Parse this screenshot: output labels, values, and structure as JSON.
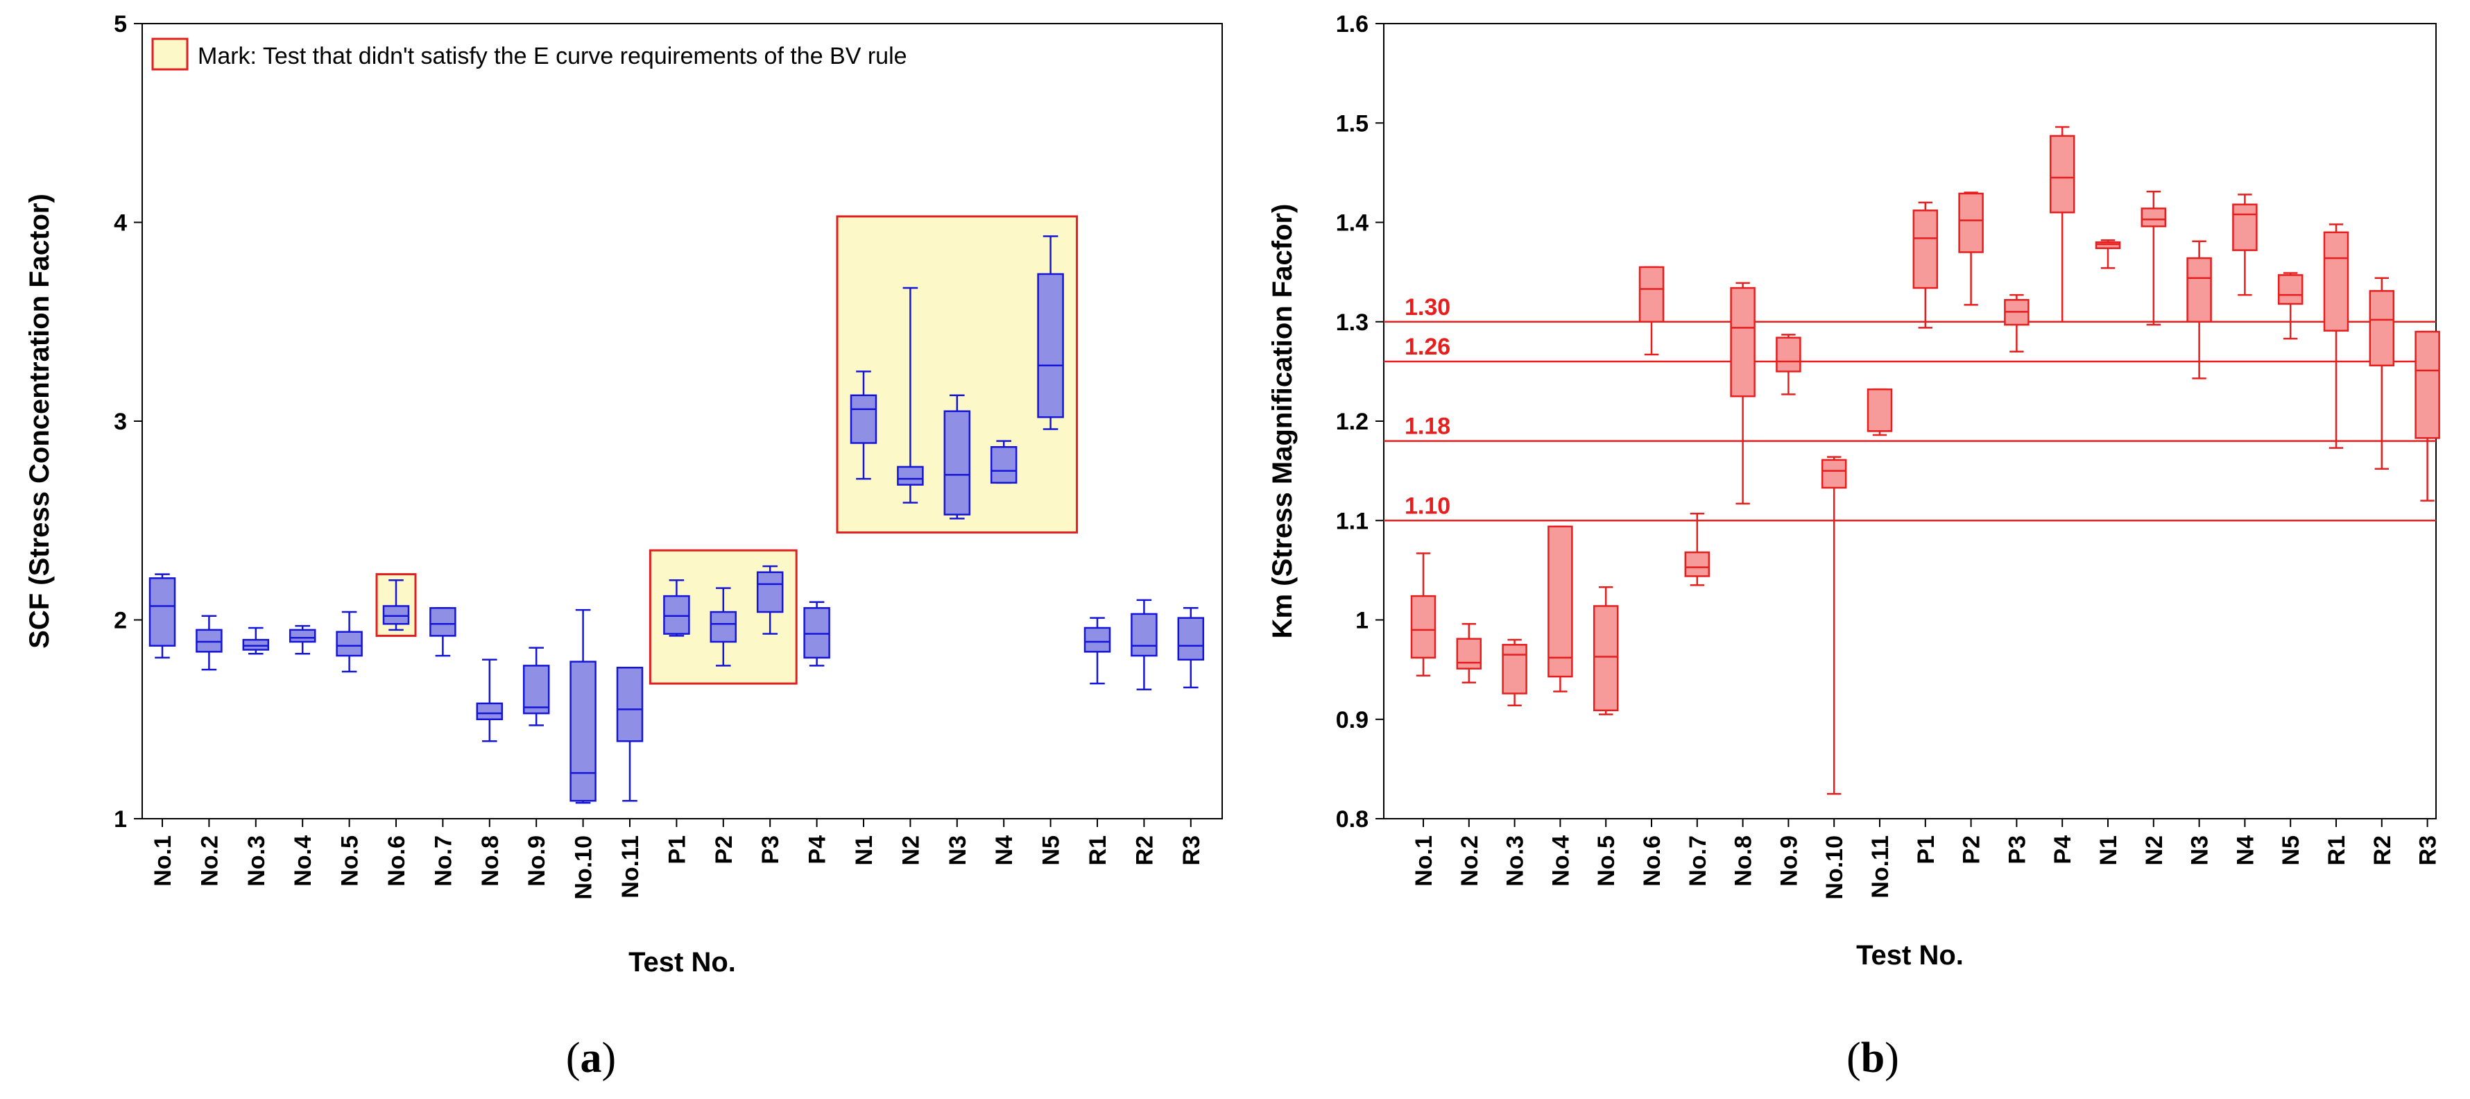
{
  "colors": {
    "a_fill": "#8f8fe6",
    "a_stroke": "#1515d8",
    "b_fill": "#f79a9a",
    "b_stroke": "#e61e1e",
    "highlight_fill": "#fdf8c7",
    "highlight_stroke": "#e02020",
    "ref_line": "#e61e1e"
  },
  "chart_data": [
    {
      "type": "boxplot",
      "panel_label": "(a)",
      "xlabel": "Test No.",
      "ylabel": "SCF (Stress Concentration Factor)",
      "ylim": [
        1,
        5
      ],
      "yticks": [
        "1",
        "2",
        "3",
        "4",
        "5"
      ],
      "categories": [
        "No.1",
        "No.2",
        "No.3",
        "No.4",
        "No.5",
        "No.6",
        "No.7",
        "No.8",
        "No.9",
        "No.10",
        "No.11",
        "P1",
        "P2",
        "P3",
        "P4",
        "N1",
        "N2",
        "N3",
        "N4",
        "N5",
        "R1",
        "R2",
        "R3"
      ],
      "boxes": [
        {
          "min": 1.81,
          "q1": 1.87,
          "median": 2.07,
          "q3": 2.21,
          "max": 2.23
        },
        {
          "min": 1.75,
          "q1": 1.84,
          "median": 1.89,
          "q3": 1.95,
          "max": 2.02
        },
        {
          "min": 1.83,
          "q1": 1.85,
          "median": 1.87,
          "q3": 1.9,
          "max": 1.96
        },
        {
          "min": 1.83,
          "q1": 1.89,
          "median": 1.91,
          "q3": 1.95,
          "max": 1.97
        },
        {
          "min": 1.74,
          "q1": 1.82,
          "median": 1.87,
          "q3": 1.94,
          "max": 2.04
        },
        {
          "min": 1.95,
          "q1": 1.98,
          "median": 2.02,
          "q3": 2.07,
          "max": 2.2
        },
        {
          "min": 1.82,
          "q1": 1.92,
          "median": 1.98,
          "q3": 2.06,
          "max": 2.06
        },
        {
          "min": 1.39,
          "q1": 1.5,
          "median": 1.53,
          "q3": 1.58,
          "max": 1.8
        },
        {
          "min": 1.47,
          "q1": 1.53,
          "median": 1.56,
          "q3": 1.77,
          "max": 1.86
        },
        {
          "min": 1.08,
          "q1": 1.09,
          "median": 1.23,
          "q3": 1.79,
          "max": 2.05
        },
        {
          "min": 1.09,
          "q1": 1.39,
          "median": 1.55,
          "q3": 1.76,
          "max": 1.76
        },
        {
          "min": 1.92,
          "q1": 1.93,
          "median": 2.02,
          "q3": 2.12,
          "max": 2.2
        },
        {
          "min": 1.77,
          "q1": 1.89,
          "median": 1.98,
          "q3": 2.04,
          "max": 2.16
        },
        {
          "min": 1.93,
          "q1": 2.04,
          "median": 2.18,
          "q3": 2.24,
          "max": 2.27
        },
        {
          "min": 1.77,
          "q1": 1.81,
          "median": 1.93,
          "q3": 2.06,
          "max": 2.09
        },
        {
          "min": 2.71,
          "q1": 2.89,
          "median": 3.06,
          "q3": 3.13,
          "max": 3.25
        },
        {
          "min": 2.59,
          "q1": 2.68,
          "median": 2.71,
          "q3": 2.77,
          "max": 3.67
        },
        {
          "min": 2.51,
          "q1": 2.53,
          "median": 2.73,
          "q3": 3.05,
          "max": 3.13
        },
        {
          "min": 2.69,
          "q1": 2.69,
          "median": 2.75,
          "q3": 2.87,
          "max": 2.9
        },
        {
          "min": 2.96,
          "q1": 3.02,
          "median": 3.28,
          "q3": 3.74,
          "max": 3.93
        },
        {
          "min": 1.68,
          "q1": 1.84,
          "median": 1.89,
          "q3": 1.96,
          "max": 2.01
        },
        {
          "min": 1.65,
          "q1": 1.82,
          "median": 1.87,
          "q3": 2.03,
          "max": 2.1
        },
        {
          "min": 1.66,
          "q1": 1.8,
          "median": 1.87,
          "q3": 2.01,
          "max": 2.06
        }
      ],
      "legend": "Mark: Test that didn't satisfy the E curve requirements of the BV rule",
      "highlight_groups": [
        {
          "from": "No.6",
          "to": "No.6",
          "y_range": [
            1.92,
            2.23
          ]
        },
        {
          "from": "P1",
          "to": "P3",
          "y_range": [
            1.68,
            2.35
          ]
        },
        {
          "from": "N1",
          "to": "N5",
          "y_range": [
            2.44,
            4.03
          ]
        }
      ]
    },
    {
      "type": "boxplot",
      "panel_label": "(b)",
      "xlabel": "Test No.",
      "ylabel": "Km (Stress Magnification Facfor)",
      "ylim": [
        0.8,
        1.6
      ],
      "yticks": [
        "0.8",
        "0.9",
        "1",
        "1.1",
        "1.2",
        "1.3",
        "1.4",
        "1.5",
        "1.6"
      ],
      "categories": [
        "No.1",
        "No.2",
        "No.3",
        "No.4",
        "No.5",
        "No.6",
        "No.7",
        "No.8",
        "No.9",
        "No.10",
        "No.11",
        "P1",
        "P2",
        "P3",
        "P4",
        "N1",
        "N2",
        "N3",
        "N4",
        "N5",
        "R1",
        "R2",
        "R3"
      ],
      "boxes": [
        {
          "min": 0.944,
          "q1": 0.962,
          "median": 0.99,
          "q3": 1.024,
          "max": 1.067
        },
        {
          "min": 0.937,
          "q1": 0.951,
          "median": 0.957,
          "q3": 0.981,
          "max": 0.996
        },
        {
          "min": 0.914,
          "q1": 0.926,
          "median": 0.965,
          "q3": 0.975,
          "max": 0.98
        },
        {
          "min": 0.928,
          "q1": 0.943,
          "median": 0.962,
          "q3": 1.094,
          "max": 1.094
        },
        {
          "min": 0.905,
          "q1": 0.909,
          "median": 0.963,
          "q3": 1.014,
          "max": 1.033
        },
        {
          "min": 1.267,
          "q1": 1.3,
          "median": 1.333,
          "q3": 1.355,
          "max": 1.355
        },
        {
          "min": 1.035,
          "q1": 1.044,
          "median": 1.053,
          "q3": 1.068,
          "max": 1.107
        },
        {
          "min": 1.117,
          "q1": 1.225,
          "median": 1.294,
          "q3": 1.334,
          "max": 1.339
        },
        {
          "min": 1.227,
          "q1": 1.25,
          "median": 1.26,
          "q3": 1.284,
          "max": 1.287
        },
        {
          "min": 0.825,
          "q1": 1.133,
          "median": 1.15,
          "q3": 1.161,
          "max": 1.164
        },
        {
          "min": 1.186,
          "q1": 1.19,
          "median": 1.19,
          "q3": 1.232,
          "max": 1.232
        },
        {
          "min": 1.294,
          "q1": 1.334,
          "median": 1.384,
          "q3": 1.412,
          "max": 1.42
        },
        {
          "min": 1.317,
          "q1": 1.37,
          "median": 1.402,
          "q3": 1.429,
          "max": 1.43
        },
        {
          "min": 1.27,
          "q1": 1.297,
          "median": 1.31,
          "q3": 1.322,
          "max": 1.327
        },
        {
          "min": 1.3,
          "q1": 1.41,
          "median": 1.445,
          "q3": 1.487,
          "max": 1.496
        },
        {
          "min": 1.354,
          "q1": 1.374,
          "median": 1.378,
          "q3": 1.38,
          "max": 1.382
        },
        {
          "min": 1.297,
          "q1": 1.396,
          "median": 1.403,
          "q3": 1.414,
          "max": 1.431
        },
        {
          "min": 1.243,
          "q1": 1.3,
          "median": 1.344,
          "q3": 1.364,
          "max": 1.381
        },
        {
          "min": 1.327,
          "q1": 1.372,
          "median": 1.408,
          "q3": 1.418,
          "max": 1.428
        },
        {
          "min": 1.283,
          "q1": 1.318,
          "median": 1.327,
          "q3": 1.347,
          "max": 1.349
        },
        {
          "min": 1.173,
          "q1": 1.291,
          "median": 1.364,
          "q3": 1.39,
          "max": 1.398
        },
        {
          "min": 1.152,
          "q1": 1.256,
          "median": 1.302,
          "q3": 1.331,
          "max": 1.344
        },
        {
          "min": 1.12,
          "q1": 1.183,
          "median": 1.251,
          "q3": 1.29,
          "max": 1.29
        }
      ],
      "reference_lines": [
        {
          "value": 1.3,
          "label": "1.30"
        },
        {
          "value": 1.26,
          "label": "1.26"
        },
        {
          "value": 1.18,
          "label": "1.18"
        },
        {
          "value": 1.1,
          "label": "1.10"
        }
      ]
    }
  ]
}
